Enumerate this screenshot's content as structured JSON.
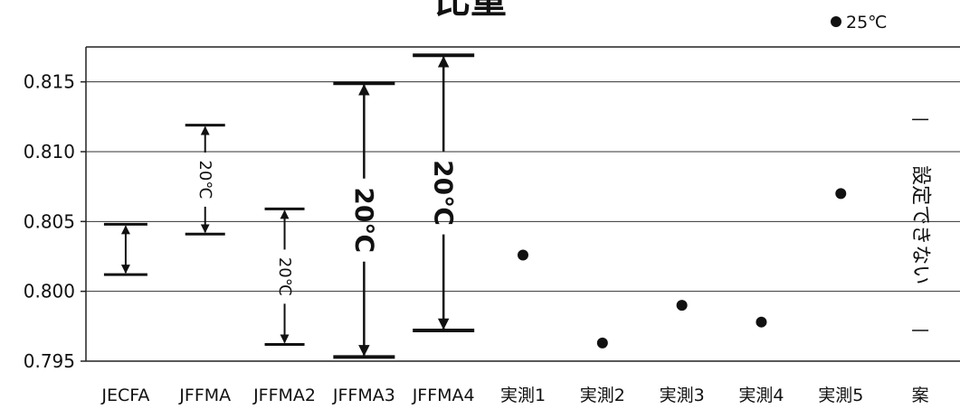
{
  "chart_data": {
    "type": "scatter",
    "title": "比重",
    "legend": {
      "label": "25℃",
      "placement": "top-right"
    },
    "categories": [
      "JECFA",
      "JFFMA",
      "JFFMA2",
      "JFFMA3",
      "JFFMA4",
      "実測1",
      "実測2",
      "実測3",
      "実測4",
      "実測5",
      "案"
    ],
    "y_ticks": [
      "0.815",
      "0.810",
      "0.805",
      "0.800",
      "0.795"
    ],
    "ylim": [
      0.795,
      0.8175
    ],
    "grid": true,
    "ranges": [
      {
        "category": "JECFA",
        "low": 0.8012,
        "high": 0.8048,
        "label": ""
      },
      {
        "category": "JFFMA",
        "low": 0.8041,
        "high": 0.8119,
        "label": "20℃"
      },
      {
        "category": "JFFMA2",
        "low": 0.7962,
        "high": 0.8059,
        "label": "20℃"
      },
      {
        "category": "JFFMA3",
        "low": 0.7953,
        "high": 0.8149,
        "label": "20℃"
      },
      {
        "category": "JFFMA4",
        "low": 0.7972,
        "high": 0.8169,
        "label": "20℃"
      }
    ],
    "series": [
      {
        "name": "25℃",
        "points": [
          {
            "category": "実測1",
            "y": 0.8026
          },
          {
            "category": "実測2",
            "y": 0.7963
          },
          {
            "category": "実測3",
            "y": 0.799
          },
          {
            "category": "実測4",
            "y": 0.7978
          },
          {
            "category": "実測5",
            "y": 0.807
          }
        ]
      }
    ],
    "annotations": [
      {
        "category": "案",
        "text": "設定できない"
      }
    ]
  }
}
